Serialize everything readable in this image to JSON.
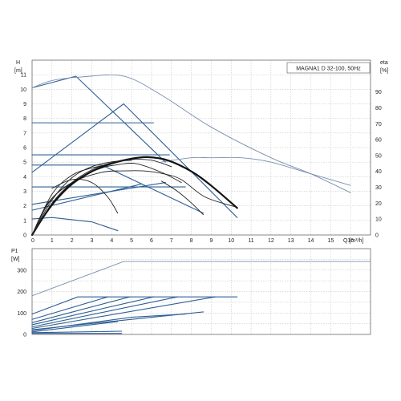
{
  "chart_data": [
    {
      "type": "line",
      "panel": "upper",
      "title": "MAGNA1 D 32-100, 50Hz",
      "xlabel": "Q [m³/h]",
      "ylabel_left": [
        "H",
        "[m]"
      ],
      "ylabel_right": [
        "eta",
        "[%]"
      ],
      "xlim": [
        0,
        17
      ],
      "ylim_left": [
        0,
        12
      ],
      "ylim_right": [
        0,
        110
      ],
      "x_ticks": [
        "0",
        "1",
        "2",
        "3",
        "4",
        "5",
        "6",
        "7",
        "8",
        "9",
        "10",
        "11",
        "12",
        "13",
        "14",
        "15",
        "16"
      ],
      "y_ticks_left": [
        "0",
        "1",
        "2",
        "3",
        "4",
        "5",
        "6",
        "7",
        "8",
        "9",
        "10",
        "11"
      ],
      "y_ticks_right": [
        "0",
        "10",
        "20",
        "30",
        "40",
        "50",
        "60",
        "70",
        "80",
        "90"
      ],
      "grid": true,
      "head_curves": [
        {
          "style": "blue",
          "points": [
            [
              0,
              4.3
            ],
            [
              4.6,
              9
            ],
            [
              10.3,
              1.2
            ]
          ]
        },
        {
          "style": "blue",
          "points": [
            [
              0,
              7.7
            ],
            [
              6.1,
              7.7
            ]
          ]
        },
        {
          "style": "blue",
          "points": [
            [
              0,
              5.5
            ],
            [
              6.9,
              5.5
            ]
          ]
        },
        {
          "style": "blue",
          "points": [
            [
              0,
              4.8
            ],
            [
              3.5,
              4.8
            ],
            [
              8.6,
              1.5
            ]
          ]
        },
        {
          "style": "blue",
          "points": [
            [
              0,
              3.3
            ],
            [
              7.7,
              3.3
            ]
          ]
        },
        {
          "style": "blue",
          "points": [
            [
              0,
              2.1
            ],
            [
              6.7,
              3.6
            ]
          ]
        },
        {
          "style": "blue",
          "points": [
            [
              0,
              1.7
            ],
            [
              5.5,
              3.5
            ]
          ]
        },
        {
          "style": "blue",
          "points": [
            [
              0,
              1.1
            ],
            [
              1,
              1.2
            ],
            [
              3,
              0.9
            ],
            [
              4.3,
              0.3
            ]
          ]
        },
        {
          "style": "blue",
          "points": [
            [
              0,
              10.1
            ],
            [
              2.2,
              10.9
            ],
            [
              6.7,
              5.0
            ]
          ]
        },
        {
          "style": "grey",
          "points": [
            [
              0,
              10.1
            ],
            [
              1,
              10.6
            ],
            [
              2.5,
              10.85
            ],
            [
              4.6,
              10.9
            ],
            [
              6.5,
              9.6
            ],
            [
              9,
              7.4
            ],
            [
              12,
              5.3
            ],
            [
              14,
              4.2
            ],
            [
              16,
              2.9
            ]
          ]
        },
        {
          "style": "dark",
          "points": [
            [
              0,
              0
            ],
            [
              0.8,
              2.2
            ],
            [
              2,
              3.6
            ],
            [
              3.5,
              4.3
            ],
            [
              4.6,
              4.4
            ],
            [
              5.6,
              4.4
            ],
            [
              6.6,
              4.2
            ],
            [
              7.5,
              3.8
            ],
            [
              8.7,
              2.6
            ],
            [
              10.3,
              1.9
            ]
          ]
        },
        {
          "style": "dark",
          "points": [
            [
              0,
              0
            ],
            [
              1,
              2.5
            ],
            [
              2.5,
              4.0
            ],
            [
              3.5,
              4.6
            ],
            [
              4.2,
              4.8
            ],
            [
              5.2,
              4.9
            ],
            [
              6.5,
              4.3
            ],
            [
              7.5,
              3.6
            ]
          ]
        },
        {
          "style": "dark",
          "points": [
            [
              0,
              0
            ],
            [
              1,
              2.8
            ],
            [
              2,
              4.1
            ],
            [
              3,
              4.6
            ],
            [
              3.8,
              4.8
            ]
          ]
        },
        {
          "style": "dark",
          "points": [
            [
              1,
              3.2
            ],
            [
              2,
              3.8
            ],
            [
              3,
              3.6
            ],
            [
              3.8,
              2.6
            ],
            [
              4.3,
              1.5
            ]
          ]
        },
        {
          "style": "dark",
          "points": [
            [
              6.5,
              3.7
            ],
            [
              7.3,
              3.0
            ],
            [
              8,
              2.2
            ],
            [
              8.6,
              1.4
            ]
          ]
        },
        {
          "style": "grey",
          "points": [
            [
              6.5,
              5.0
            ],
            [
              8,
              5.3
            ],
            [
              9,
              5.3
            ],
            [
              10.5,
              5.3
            ],
            [
              12,
              5.0
            ],
            [
              14,
              4.2
            ],
            [
              16,
              3.4
            ]
          ]
        }
      ],
      "efficiency_curves": [
        {
          "style": "bold",
          "points": [
            [
              0,
              0
            ],
            [
              0.6,
              12
            ],
            [
              1.2,
              22
            ],
            [
              2,
              32
            ],
            [
              3,
              40
            ],
            [
              4,
              45
            ],
            [
              5,
              48
            ],
            [
              5.8,
              49
            ],
            [
              6.8,
              47
            ],
            [
              8,
              40
            ],
            [
              9,
              31
            ],
            [
              10.3,
              17
            ]
          ]
        },
        {
          "style": "dark",
          "points": [
            [
              0,
              0
            ],
            [
              1,
              20
            ],
            [
              2,
              33
            ],
            [
              3,
              41
            ],
            [
              4,
              45.5
            ],
            [
              5,
              47.5
            ],
            [
              6,
              47
            ],
            [
              7,
              43
            ]
          ]
        },
        {
          "style": "dark",
          "points": [
            [
              0,
              0
            ],
            [
              1,
              22
            ],
            [
              2,
              36
            ],
            [
              3,
              43
            ],
            [
              4,
              46
            ],
            [
              5,
              47
            ]
          ]
        }
      ],
      "legend": "none"
    },
    {
      "type": "line",
      "panel": "lower",
      "ylabel": [
        "P1",
        "[W]"
      ],
      "xlim": [
        0,
        17
      ],
      "ylim": [
        0,
        400
      ],
      "y_ticks": [
        "0",
        "100",
        "200",
        "300"
      ],
      "grid": true,
      "power_curves": [
        {
          "style": "grey",
          "points": [
            [
              0,
              180
            ],
            [
              4.6,
              340
            ],
            [
              17,
              340
            ]
          ]
        },
        {
          "style": "blue",
          "points": [
            [
              0,
              95
            ],
            [
              2.3,
              175
            ],
            [
              10.3,
              175
            ]
          ]
        },
        {
          "style": "blue",
          "points": [
            [
              0,
              70
            ],
            [
              3.8,
              175
            ]
          ]
        },
        {
          "style": "blue",
          "points": [
            [
              0,
              55
            ],
            [
              4.9,
              175
            ]
          ]
        },
        {
          "style": "blue",
          "points": [
            [
              0,
              45
            ],
            [
              6.1,
              175
            ]
          ]
        },
        {
          "style": "blue",
          "points": [
            [
              0,
              35
            ],
            [
              7.3,
              175
            ]
          ]
        },
        {
          "style": "blue",
          "points": [
            [
              0,
              28
            ],
            [
              9.2,
              175
            ]
          ]
        },
        {
          "style": "blue",
          "points": [
            [
              0,
              22
            ],
            [
              8.6,
              105
            ]
          ]
        },
        {
          "style": "blue",
          "points": [
            [
              0,
              18
            ],
            [
              5,
              80
            ],
            [
              7.7,
              95
            ]
          ]
        },
        {
          "style": "blue",
          "points": [
            [
              0,
              12
            ],
            [
              4.3,
              60
            ]
          ]
        },
        {
          "style": "blue",
          "points": [
            [
              0,
              8
            ],
            [
              4.5,
              15
            ]
          ]
        },
        {
          "style": "blue",
          "points": [
            [
              0,
              5
            ],
            [
              4.5,
              5
            ]
          ]
        }
      ]
    }
  ]
}
